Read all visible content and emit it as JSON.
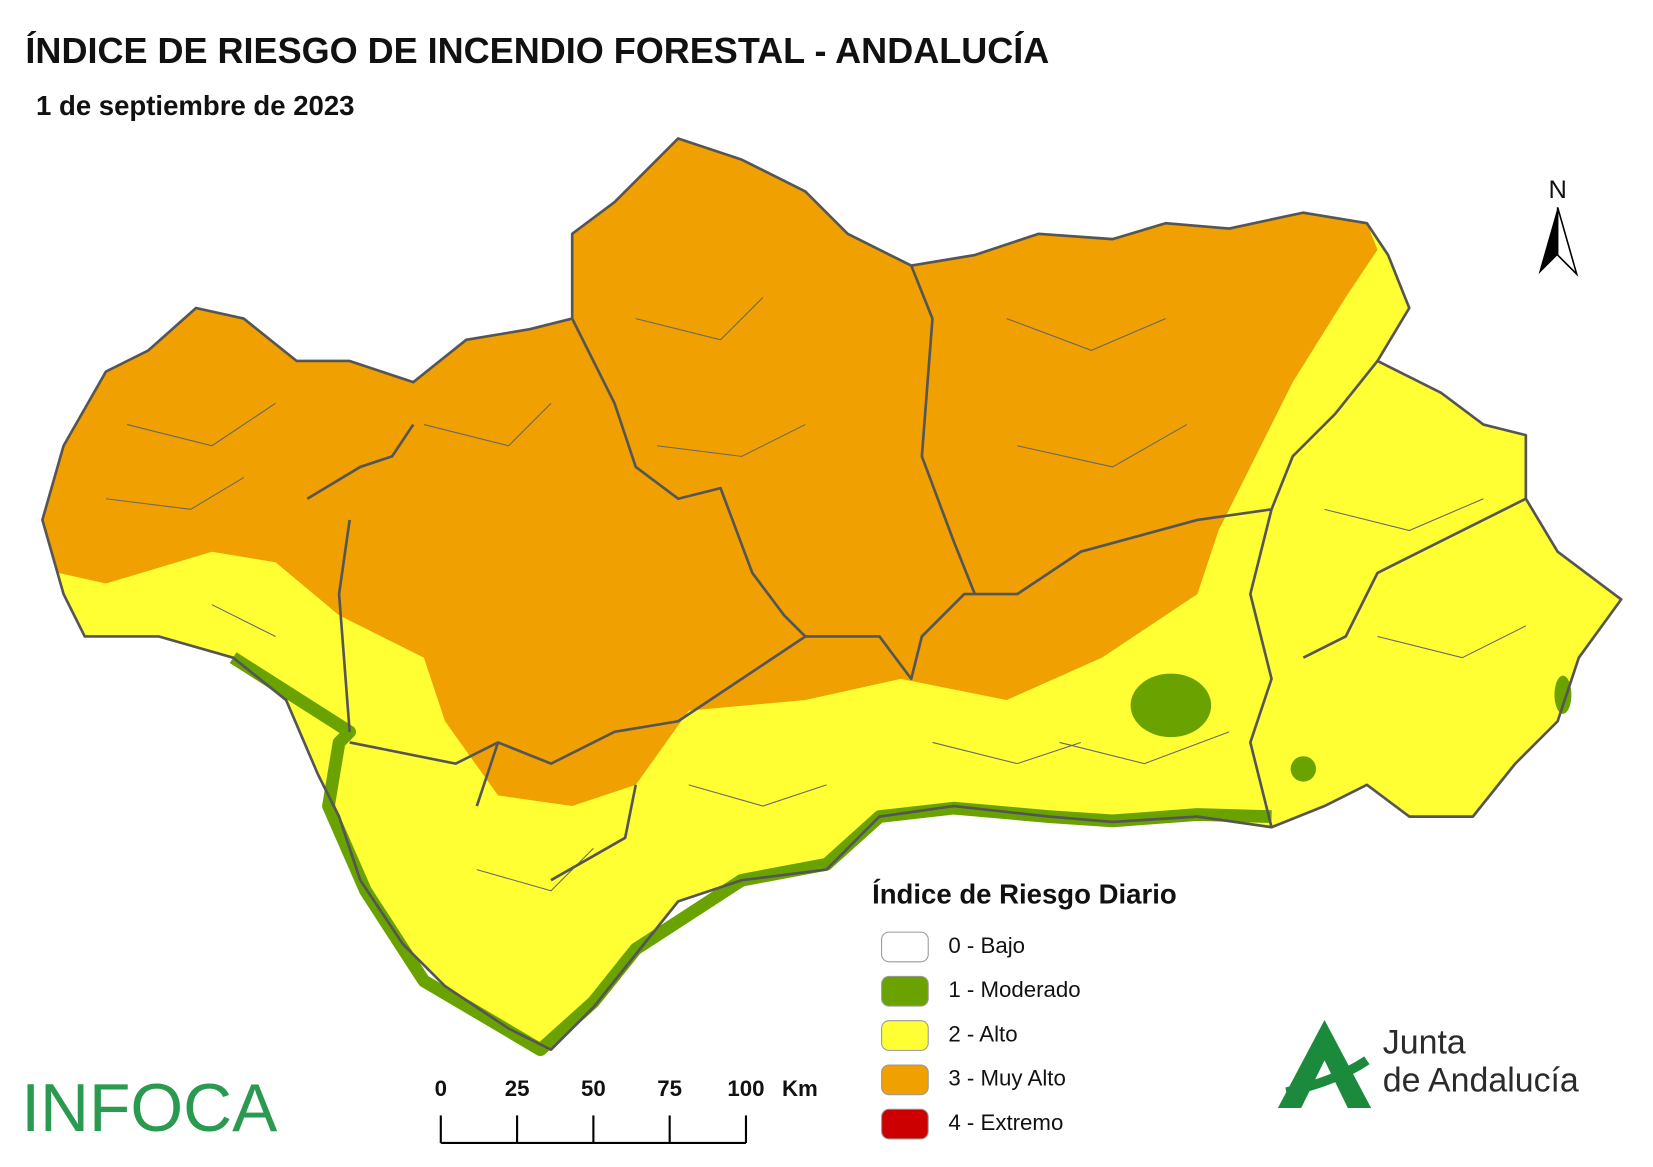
{
  "title": "ÍNDICE DE RIESGO DE INCENDIO FORESTAL - ANDALUCÍA",
  "subtitle": "1 de septiembre de 2023",
  "north": "N",
  "legend": {
    "title": "Índice de Riesgo Diario",
    "items": [
      {
        "label": "0 - Bajo",
        "color": "#ffffff"
      },
      {
        "label": "1 - Moderado",
        "color": "#6aa300"
      },
      {
        "label": "2 - Alto",
        "color": "#ffff33"
      },
      {
        "label": "3 - Muy Alto",
        "color": "#f0a000"
      },
      {
        "label": "4 - Extremo",
        "color": "#cc0000"
      }
    ]
  },
  "scale_bar": {
    "ticks": [
      0,
      25,
      50,
      75,
      100
    ],
    "unit": "Km"
  },
  "logos": {
    "infoca": "INFOCA",
    "junta_line1": "Junta",
    "junta_line2": "de Andalucía"
  }
}
